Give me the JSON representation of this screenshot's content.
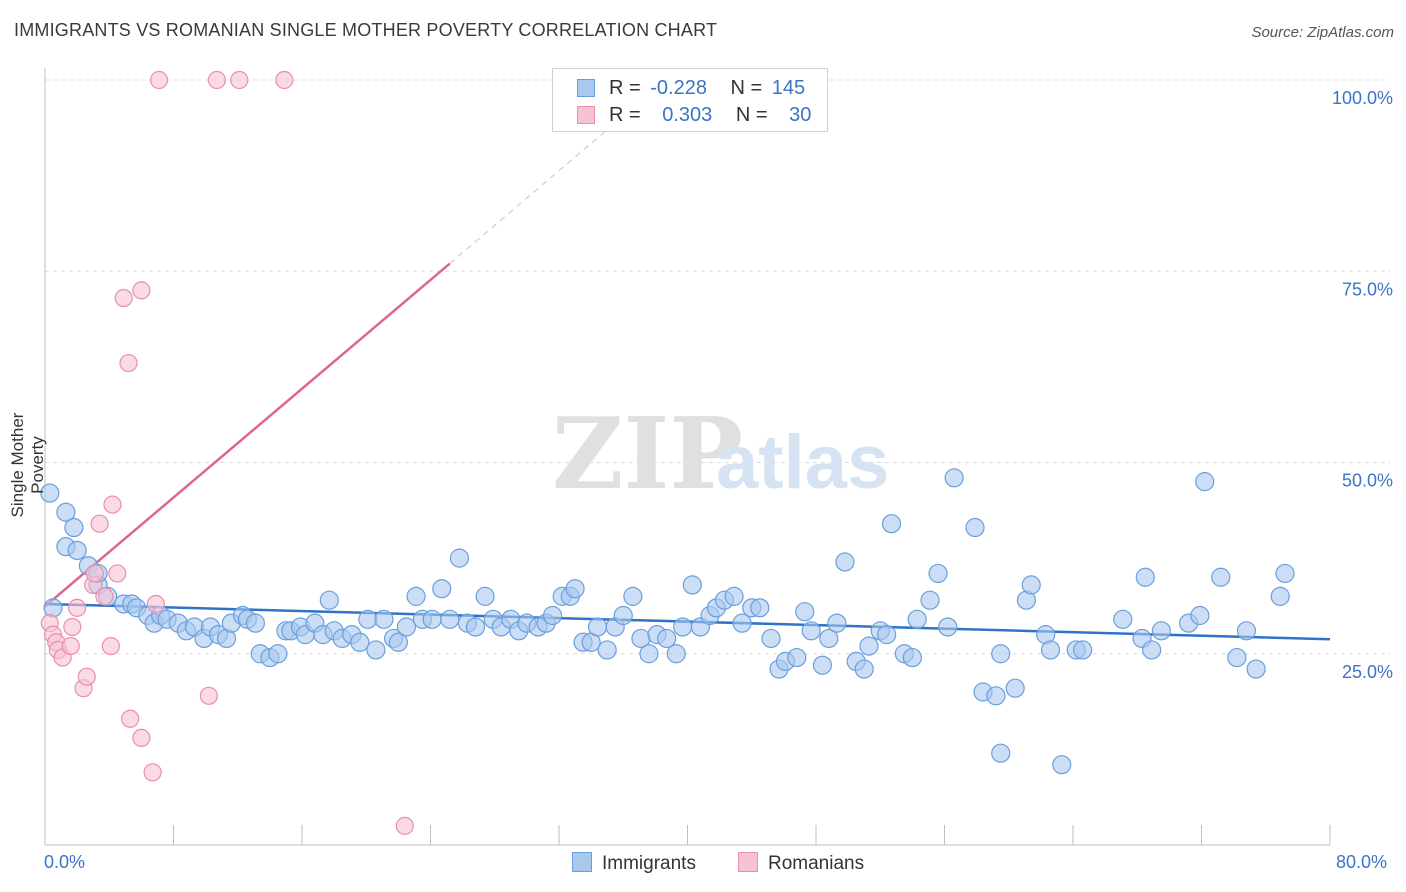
{
  "title": "IMMIGRANTS VS ROMANIAN SINGLE MOTHER POVERTY CORRELATION CHART",
  "source": "Source: ZipAtlas.com",
  "watermark": {
    "zip": "ZIP",
    "atlas": "atlas"
  },
  "legend_top": {
    "rows": [
      {
        "r_label": "R =",
        "r_value": "-0.228",
        "n_label": "N =",
        "n_value": "145"
      },
      {
        "r_label": "R =",
        "r_value": "0.303",
        "n_label": "N =",
        "n_value": "30"
      }
    ]
  },
  "legend_bottom": [
    "Immigrants",
    "Romanians"
  ],
  "colors": {
    "immigrants_fill": "#a8c8ee",
    "immigrants_stroke": "#6a9fdc",
    "immigrants_line": "#2f73c9",
    "romanians_fill": "#f7c3d3",
    "romanians_stroke": "#ea8eab",
    "romanians_line": "#e0648e",
    "axis_text": "#3b74c7",
    "grid": "#dcdcdc"
  },
  "chart_data": {
    "type": "scatter",
    "title": "IMMIGRANTS VS ROMANIAN SINGLE MOTHER POVERTY CORRELATION CHART",
    "xlabel": "",
    "ylabel": "Single Mother Poverty",
    "xlim": [
      0,
      80
    ],
    "ylim": [
      0,
      100
    ],
    "x_tick_labels": [
      "0.0%",
      "80.0%"
    ],
    "y_tick_labels": [
      "100.0%",
      "75.0%",
      "50.0%",
      "25.0%"
    ],
    "y_ticks": [
      100,
      75,
      50,
      25
    ],
    "grid": true,
    "legend_position": "top-center",
    "series": [
      {
        "name": "Immigrants",
        "trend": {
          "x": [
            0,
            80
          ],
          "y": [
            31.5,
            26.9
          ]
        },
        "points": [
          [
            0.3,
            46
          ],
          [
            1.3,
            43.5
          ],
          [
            1.3,
            39
          ],
          [
            1.8,
            41.5
          ],
          [
            2,
            38.5
          ],
          [
            2.7,
            36.5
          ],
          [
            3.3,
            34
          ],
          [
            3.3,
            35.5
          ],
          [
            3.9,
            32.5
          ],
          [
            4.9,
            31.5
          ],
          [
            5.4,
            31.5
          ],
          [
            5.7,
            31
          ],
          [
            6.4,
            30
          ],
          [
            6.8,
            29
          ],
          [
            7.2,
            30
          ],
          [
            7.6,
            29.5
          ],
          [
            8.3,
            29
          ],
          [
            8.8,
            28
          ],
          [
            9.3,
            28.5
          ],
          [
            9.9,
            27
          ],
          [
            10.3,
            28.5
          ],
          [
            10.8,
            27.5
          ],
          [
            11.3,
            27
          ],
          [
            11.6,
            29
          ],
          [
            12.3,
            30
          ],
          [
            12.6,
            29.5
          ],
          [
            13.1,
            29
          ],
          [
            13.4,
            25
          ],
          [
            14,
            24.5
          ],
          [
            14.5,
            25
          ],
          [
            15,
            28
          ],
          [
            15.3,
            28
          ],
          [
            15.9,
            28.5
          ],
          [
            16.2,
            27.5
          ],
          [
            16.8,
            29
          ],
          [
            17.3,
            27.5
          ],
          [
            17.7,
            32
          ],
          [
            18,
            28
          ],
          [
            18.5,
            27
          ],
          [
            19.1,
            27.5
          ],
          [
            19.6,
            26.5
          ],
          [
            20.1,
            29.5
          ],
          [
            20.6,
            25.5
          ],
          [
            21.1,
            29.5
          ],
          [
            21.7,
            27
          ],
          [
            22,
            26.5
          ],
          [
            22.5,
            28.5
          ],
          [
            23.1,
            32.5
          ],
          [
            23.5,
            29.5
          ],
          [
            24.1,
            29.5
          ],
          [
            24.7,
            33.5
          ],
          [
            25.2,
            29.5
          ],
          [
            25.8,
            37.5
          ],
          [
            26.3,
            29
          ],
          [
            26.8,
            28.5
          ],
          [
            27.4,
            32.5
          ],
          [
            27.9,
            29.5
          ],
          [
            28.4,
            28.5
          ],
          [
            29,
            29.5
          ],
          [
            29.5,
            28
          ],
          [
            30,
            29
          ],
          [
            30.7,
            28.5
          ],
          [
            31.2,
            29
          ],
          [
            31.6,
            30
          ],
          [
            32.2,
            32.5
          ],
          [
            32.7,
            32.5
          ],
          [
            33,
            33.5
          ],
          [
            33.5,
            26.5
          ],
          [
            34,
            26.5
          ],
          [
            34.4,
            28.5
          ],
          [
            35,
            25.5
          ],
          [
            35.5,
            28.5
          ],
          [
            36,
            30
          ],
          [
            36.6,
            32.5
          ],
          [
            37.1,
            27
          ],
          [
            37.6,
            25
          ],
          [
            38.1,
            27.5
          ],
          [
            38.7,
            27
          ],
          [
            39.3,
            25
          ],
          [
            39.7,
            28.5
          ],
          [
            40.3,
            34
          ],
          [
            40.8,
            28.5
          ],
          [
            41.4,
            30
          ],
          [
            41.8,
            31
          ],
          [
            42.3,
            32
          ],
          [
            42.9,
            32.5
          ],
          [
            43.4,
            29
          ],
          [
            44,
            31
          ],
          [
            44.5,
            31
          ],
          [
            45.2,
            27
          ],
          [
            45.7,
            23
          ],
          [
            46.1,
            24
          ],
          [
            46.8,
            24.5
          ],
          [
            47.3,
            30.5
          ],
          [
            47.7,
            28
          ],
          [
            48.4,
            23.5
          ],
          [
            48.8,
            27
          ],
          [
            49.3,
            29
          ],
          [
            49.8,
            37
          ],
          [
            50.5,
            24
          ],
          [
            51,
            23
          ],
          [
            51.3,
            26
          ],
          [
            52,
            28
          ],
          [
            52.4,
            27.5
          ],
          [
            52.7,
            42
          ],
          [
            53.5,
            25
          ],
          [
            54,
            24.5
          ],
          [
            54.3,
            29.5
          ],
          [
            55.1,
            32
          ],
          [
            55.6,
            35.5
          ],
          [
            56.2,
            28.5
          ],
          [
            56.6,
            48
          ],
          [
            57.9,
            41.5
          ],
          [
            58.4,
            20
          ],
          [
            59.2,
            19.5
          ],
          [
            59.5,
            25
          ],
          [
            59.5,
            12
          ],
          [
            60.4,
            20.5
          ],
          [
            61.1,
            32
          ],
          [
            61.4,
            34
          ],
          [
            62.3,
            27.5
          ],
          [
            62.6,
            25.5
          ],
          [
            63.3,
            10.5
          ],
          [
            64.2,
            25.5
          ],
          [
            64.6,
            25.5
          ],
          [
            67.1,
            29.5
          ],
          [
            68.3,
            27
          ],
          [
            68.9,
            25.5
          ],
          [
            69.5,
            28
          ],
          [
            71.2,
            29
          ],
          [
            71.9,
            30
          ],
          [
            72.2,
            47.5
          ],
          [
            73.2,
            35
          ],
          [
            74.2,
            24.5
          ],
          [
            74.8,
            28
          ],
          [
            75.4,
            23
          ],
          [
            76.9,
            32.5
          ],
          [
            77.2,
            35.5
          ],
          [
            68.5,
            35
          ],
          [
            0.5,
            31
          ]
        ]
      },
      {
        "name": "Romanians",
        "trend": {
          "x": [
            0,
            25.2
          ],
          "y": [
            31.2,
            76.0
          ]
        },
        "trend_dashed": {
          "x": [
            25.2,
            35
          ],
          "y": [
            76.0,
            93.5
          ]
        },
        "points": [
          [
            0.3,
            29
          ],
          [
            0.5,
            27.5
          ],
          [
            0.7,
            26.5
          ],
          [
            0.8,
            25.5
          ],
          [
            1.1,
            24.5
          ],
          [
            1.6,
            26
          ],
          [
            1.7,
            28.5
          ],
          [
            2,
            31
          ],
          [
            2.4,
            20.5
          ],
          [
            2.6,
            22
          ],
          [
            3,
            34
          ],
          [
            3.1,
            35.5
          ],
          [
            3.4,
            42
          ],
          [
            3.7,
            32.5
          ],
          [
            4.1,
            26
          ],
          [
            4.2,
            44.5
          ],
          [
            4.5,
            35.5
          ],
          [
            4.9,
            71.5
          ],
          [
            5.2,
            63
          ],
          [
            5.3,
            16.5
          ],
          [
            6,
            14
          ],
          [
            6,
            72.5
          ],
          [
            6.7,
            9.5
          ],
          [
            6.9,
            31.5
          ],
          [
            7.1,
            100
          ],
          [
            10.2,
            19.5
          ],
          [
            10.7,
            100
          ],
          [
            12.1,
            100
          ],
          [
            14.9,
            100
          ],
          [
            22.4,
            2.5
          ]
        ]
      }
    ]
  }
}
